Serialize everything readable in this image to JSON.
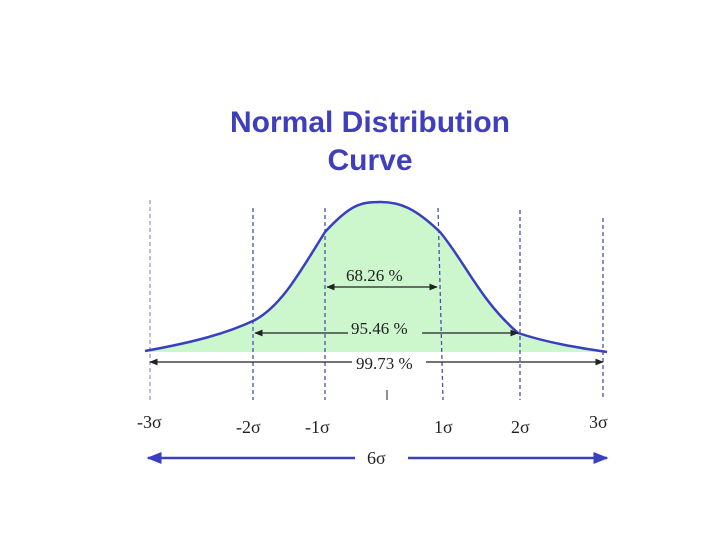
{
  "title": {
    "line1": "Normal Distribution",
    "line2": "Curve"
  },
  "intervals": [
    {
      "label": "68.26 %",
      "span": "±1σ"
    },
    {
      "label": "95.46 %",
      "span": "±2σ"
    },
    {
      "label": "99.73 %",
      "span": "±3σ"
    }
  ],
  "sigma_labels": [
    "-3σ",
    "-2σ",
    "-1σ",
    "1σ",
    "2σ",
    "3σ"
  ],
  "span_label": "6σ",
  "colors": {
    "title": "#3f3fbd",
    "curve": "#3a3fc0",
    "fill": "#ccf7cc",
    "sigma_lines": "#4a4fb0",
    "arrow_6sigma": "#3a3fc0",
    "percent_arrows": "#222222"
  }
}
